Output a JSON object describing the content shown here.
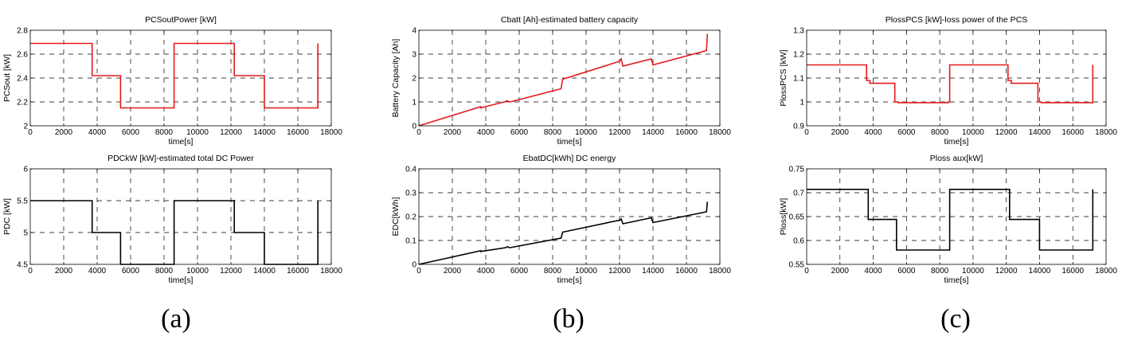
{
  "panel_labels": [
    "(a)",
    "(b)",
    "(c)"
  ],
  "chart_data": [
    {
      "type": "line",
      "title": "PCSoutPower [kW]",
      "xlabel": "time[s]",
      "ylabel": "PCSout [kW]",
      "xlim": [
        0,
        18000
      ],
      "ylim": [
        2,
        2.8
      ],
      "xticks": [
        "0",
        "2000",
        "4000",
        "6000",
        "8000",
        "10000",
        "12000",
        "14000",
        "16000",
        "18000"
      ],
      "yticks": [
        "2",
        "2.2",
        "2.4",
        "2.6",
        "2.8"
      ],
      "grid": "dashed",
      "color": "#e31a1c",
      "series": [
        {
          "x": [
            0,
            3700,
            3700,
            5400,
            5400,
            8600,
            8600,
            12200,
            12200,
            14000,
            14000,
            17200,
            17200
          ],
          "y": [
            2.69,
            2.69,
            2.42,
            2.42,
            2.15,
            2.15,
            2.69,
            2.69,
            2.42,
            2.42,
            2.15,
            2.15,
            2.69
          ]
        }
      ]
    },
    {
      "type": "line",
      "title": "Cbatt [Ah]-estimated battery capacity",
      "xlabel": "time[s]",
      "ylabel": "Battery Capacity [Ah]",
      "xlim": [
        0,
        18000
      ],
      "ylim": [
        0,
        4
      ],
      "xticks": [
        "0",
        "2000",
        "4000",
        "6000",
        "8000",
        "10000",
        "12000",
        "14000",
        "16000",
        "18000"
      ],
      "yticks": [
        "0",
        "1",
        "2",
        "3",
        "4"
      ],
      "grid": "dashed",
      "color": "#e31a1c",
      "series": [
        {
          "x": [
            0,
            3700,
            3700,
            5100,
            5300,
            5400,
            5450,
            8500,
            8600,
            12000,
            12100,
            12200,
            13900,
            14000,
            17200,
            17250
          ],
          "y": [
            0,
            0.8,
            0.75,
            1.0,
            1.05,
            1.0,
            1.0,
            1.55,
            1.95,
            2.7,
            2.8,
            2.5,
            2.8,
            2.55,
            3.15,
            3.85
          ]
        }
      ]
    },
    {
      "type": "line",
      "title": "PlossPCS [kW]-loss power of the PCS",
      "xlabel": "time[s]",
      "ylabel": "PlossPCS [kW]",
      "xlim": [
        0,
        18000
      ],
      "ylim": [
        0.9,
        1.3
      ],
      "xticks": [
        "0",
        "2000",
        "4000",
        "6000",
        "8000",
        "10000",
        "12000",
        "14000",
        "16000",
        "18000"
      ],
      "yticks": [
        "0.9",
        "1",
        "1.1",
        "1.2",
        "1.3"
      ],
      "grid": "dashed",
      "color": "#e31a1c",
      "series": [
        {
          "x": [
            0,
            3600,
            3600,
            3800,
            3800,
            5300,
            5300,
            5500,
            5500,
            8500,
            8500,
            8600,
            8600,
            12100,
            12100,
            12300,
            12300,
            13900,
            13900,
            14100,
            14100,
            17200,
            17200
          ],
          "y": [
            1.155,
            1.155,
            1.09,
            1.09,
            1.078,
            1.078,
            1.0,
            1.0,
            0.997,
            0.997,
            1.0,
            1.0,
            1.155,
            1.155,
            1.09,
            1.09,
            1.078,
            1.078,
            1.0,
            1.0,
            0.997,
            0.997,
            1.155
          ]
        }
      ]
    },
    {
      "type": "line",
      "title": "PDCkW [kW]-estimated total DC Power",
      "xlabel": "time[s]",
      "ylabel": "PDC [kW]",
      "xlim": [
        0,
        18000
      ],
      "ylim": [
        4.5,
        6
      ],
      "xticks": [
        "0",
        "2000",
        "4000",
        "6000",
        "8000",
        "10000",
        "12000",
        "14000",
        "16000",
        "18000"
      ],
      "yticks": [
        "4.5",
        "5",
        "5.5",
        "6"
      ],
      "grid": "dashed",
      "color": "#000000",
      "series": [
        {
          "x": [
            0,
            3700,
            3700,
            5400,
            5400,
            8600,
            8600,
            12200,
            12200,
            14000,
            14000,
            17200,
            17200
          ],
          "y": [
            5.5,
            5.5,
            5.0,
            5.0,
            4.5,
            4.5,
            5.5,
            5.5,
            5.0,
            5.0,
            4.5,
            4.5,
            5.5
          ]
        }
      ]
    },
    {
      "type": "line",
      "title": "EbatDC[kWh] DC energy",
      "xlabel": "time[s]",
      "ylabel": "EDC[kWh]",
      "xlim": [
        0,
        18000
      ],
      "ylim": [
        0,
        0.4
      ],
      "xticks": [
        "0",
        "2000",
        "4000",
        "6000",
        "8000",
        "10000",
        "12000",
        "14000",
        "16000",
        "18000"
      ],
      "yticks": [
        "0",
        "0.1",
        "0.2",
        "0.3",
        "0.4"
      ],
      "grid": "dashed",
      "color": "#000000",
      "series": [
        {
          "x": [
            0,
            3700,
            3700,
            5200,
            5300,
            5400,
            5450,
            8500,
            8600,
            12000,
            12100,
            12200,
            13900,
            14000,
            17200,
            17250
          ],
          "y": [
            0,
            0.057,
            0.054,
            0.07,
            0.074,
            0.07,
            0.07,
            0.11,
            0.135,
            0.185,
            0.19,
            0.17,
            0.195,
            0.175,
            0.22,
            0.262
          ]
        }
      ]
    },
    {
      "type": "line",
      "title": "Ploss aux[kW]",
      "xlabel": "time[s]",
      "ylabel": "Ploss[kW]",
      "xlim": [
        0,
        18000
      ],
      "ylim": [
        0.55,
        0.75
      ],
      "xticks": [
        "0",
        "2000",
        "4000",
        "6000",
        "8000",
        "10000",
        "12000",
        "14000",
        "16000",
        "18000"
      ],
      "yticks": [
        "0.55",
        "0.6",
        "0.65",
        "0.7",
        "0.75"
      ],
      "grid": "dashed",
      "color": "#000000",
      "series": [
        {
          "x": [
            0,
            3700,
            3700,
            5400,
            5400,
            8600,
            8600,
            12200,
            12200,
            14000,
            14000,
            17200,
            17200
          ],
          "y": [
            0.707,
            0.707,
            0.644,
            0.644,
            0.58,
            0.58,
            0.707,
            0.707,
            0.644,
            0.644,
            0.58,
            0.58,
            0.707
          ]
        }
      ]
    }
  ]
}
